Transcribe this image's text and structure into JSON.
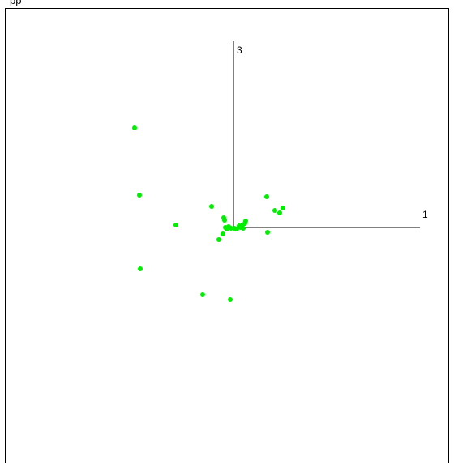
{
  "window": {
    "title": "pp"
  },
  "colors": {
    "points": "#00ee00",
    "axes": "#000000",
    "background": "#ffffff"
  },
  "chart_data": {
    "type": "scatter",
    "title": "",
    "x_axis_label": "1",
    "y_axis_label": "3",
    "grid": false,
    "points": [
      {
        "x": -122,
        "y": 123
      },
      {
        "x": -116,
        "y": 40
      },
      {
        "x": -115,
        "y": -51
      },
      {
        "x": -71,
        "y": 3
      },
      {
        "x": -38,
        "y": -83
      },
      {
        "x": -27,
        "y": 26
      },
      {
        "x": -18,
        "y": -15
      },
      {
        "x": -13,
        "y": -8
      },
      {
        "x": -12,
        "y": 12
      },
      {
        "x": -11,
        "y": 9
      },
      {
        "x": -10,
        "y": 0
      },
      {
        "x": -8,
        "y": -2
      },
      {
        "x": -6,
        "y": 1
      },
      {
        "x": -4,
        "y": -89
      },
      {
        "x": -3,
        "y": -1
      },
      {
        "x": 1,
        "y": -1
      },
      {
        "x": 4,
        "y": -2
      },
      {
        "x": 7,
        "y": 2
      },
      {
        "x": 9,
        "y": 0
      },
      {
        "x": 11,
        "y": 3
      },
      {
        "x": 12,
        "y": -1
      },
      {
        "x": 14,
        "y": 5
      },
      {
        "x": 15,
        "y": 8
      },
      {
        "x": 41,
        "y": 38
      },
      {
        "x": 42,
        "y": -6
      },
      {
        "x": 51,
        "y": 21
      },
      {
        "x": 57,
        "y": 18
      },
      {
        "x": 61,
        "y": 24
      }
    ]
  }
}
